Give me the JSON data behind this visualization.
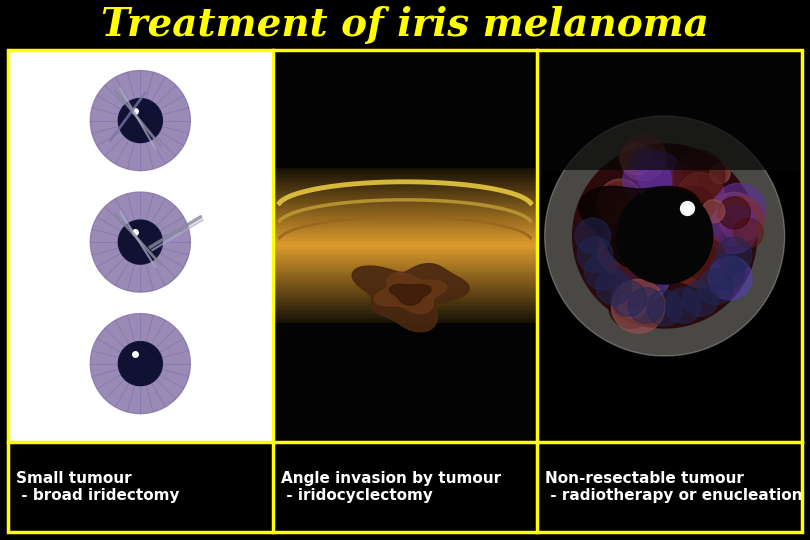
{
  "title": "Treatment of iris melanoma",
  "title_color": "#FFFF00",
  "title_fontsize": 28,
  "background_color": "#000000",
  "border_color": "#FFFF00",
  "border_lw": 2.5,
  "cell_labels": [
    "Small tumour\n - broad iridectomy",
    "Angle invasion by tumour\n - iridocyclectomy",
    "Non-resectable tumour\n - radiotherapy or enucleation"
  ],
  "label_color": "#FFFFFF",
  "label_fontsize": 11,
  "col0_bg": "#FFFFFF",
  "col1_bg": "#000000",
  "col2_bg": "#000000"
}
